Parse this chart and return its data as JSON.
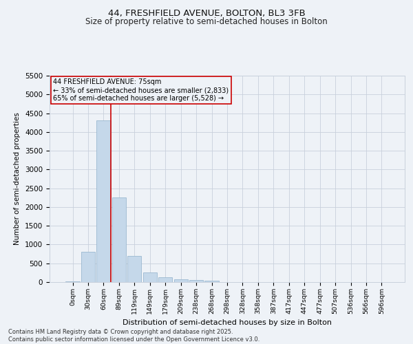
{
  "title_line1": "44, FRESHFIELD AVENUE, BOLTON, BL3 3FB",
  "title_line2": "Size of property relative to semi-detached houses in Bolton",
  "xlabel": "Distribution of semi-detached houses by size in Bolton",
  "ylabel": "Number of semi-detached properties",
  "categories": [
    "0sqm",
    "30sqm",
    "60sqm",
    "89sqm",
    "119sqm",
    "149sqm",
    "179sqm",
    "209sqm",
    "238sqm",
    "268sqm",
    "298sqm",
    "328sqm",
    "358sqm",
    "387sqm",
    "417sqm",
    "447sqm",
    "477sqm",
    "507sqm",
    "536sqm",
    "566sqm",
    "596sqm"
  ],
  "values": [
    20,
    800,
    4300,
    2250,
    700,
    250,
    130,
    70,
    60,
    40,
    0,
    0,
    0,
    0,
    0,
    0,
    0,
    0,
    0,
    0,
    0
  ],
  "bar_color": "#c5d8ea",
  "bar_edge_color": "#9ab8d0",
  "grid_color": "#c8d0dc",
  "background_color": "#eef2f7",
  "annotation_box_color": "#cc0000",
  "property_line_color": "#cc0000",
  "annotation_title": "44 FRESHFIELD AVENUE: 75sqm",
  "annotation_line1": "← 33% of semi-detached houses are smaller (2,833)",
  "annotation_line2": "65% of semi-detached houses are larger (5,528) →",
  "ylim": [
    0,
    5500
  ],
  "yticks": [
    0,
    500,
    1000,
    1500,
    2000,
    2500,
    3000,
    3500,
    4000,
    4500,
    5000,
    5500
  ],
  "footer_line1": "Contains HM Land Registry data © Crown copyright and database right 2025.",
  "footer_line2": "Contains public sector information licensed under the Open Government Licence v3.0.",
  "property_line_x": 2.45
}
